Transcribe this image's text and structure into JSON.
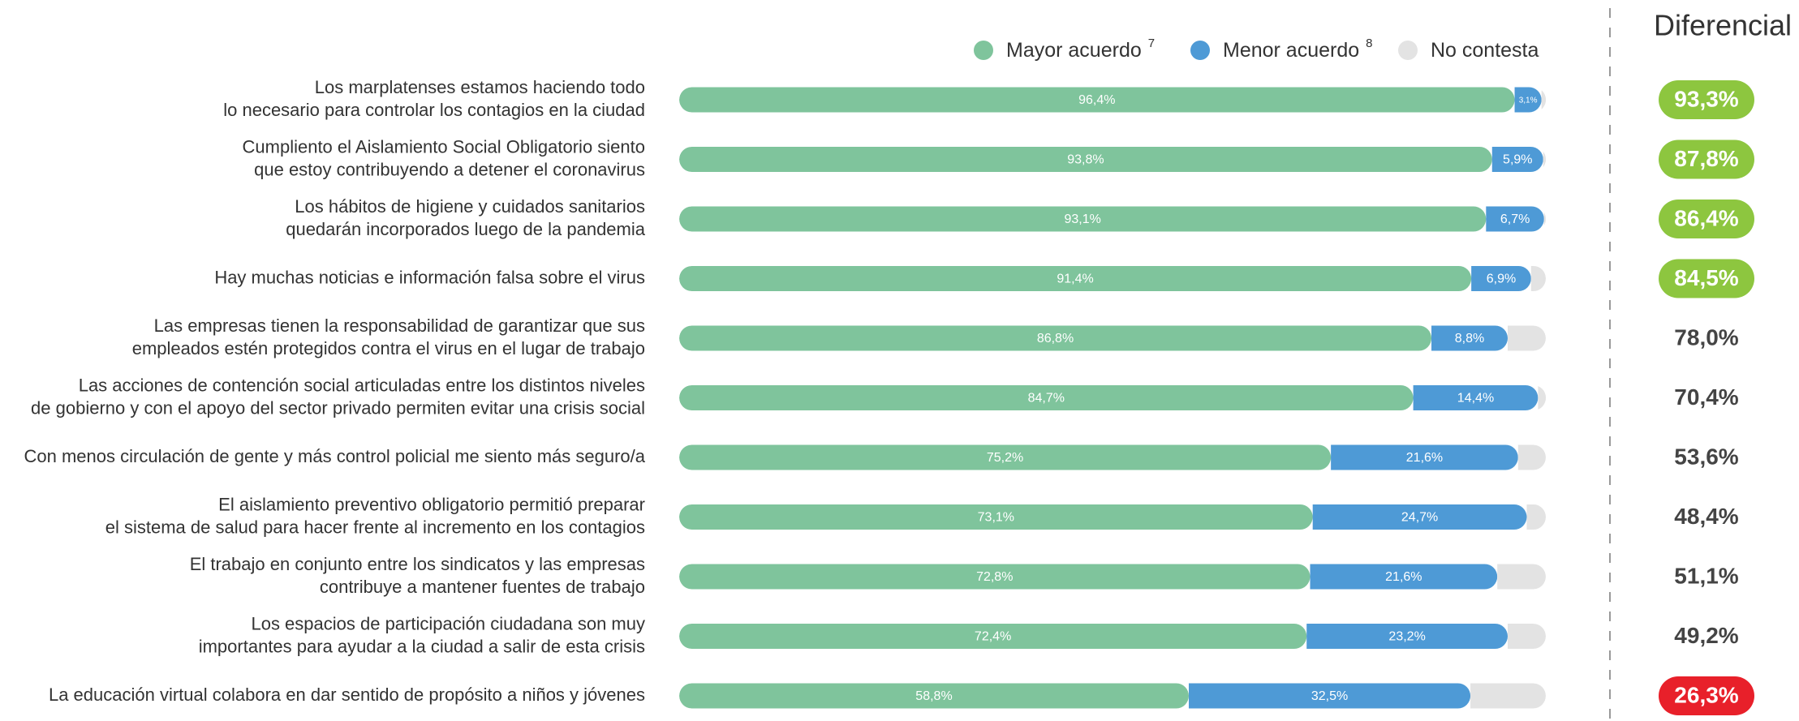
{
  "chart_data": {
    "type": "stacked_bar_horizontal",
    "categories": [
      [
        "Los marplatenses estamos haciendo todo",
        "lo necesario para controlar los contagios en la ciudad"
      ],
      [
        "Cumpliento el Aislamiento Social Obligatorio siento",
        "que estoy contribuyendo a detener el coronavirus"
      ],
      [
        "Los hábitos de higiene y cuidados sanitarios",
        "quedarán incorporados luego de la pandemia"
      ],
      [
        "Hay muchas noticias e información falsa sobre el virus"
      ],
      [
        "Las empresas tienen la responsabilidad de garantizar que sus",
        "empleados estén protegidos contra el virus en el lugar de trabajo"
      ],
      [
        "Las acciones de contención social articuladas entre los distintos niveles",
        "de gobierno y con el apoyo del sector privado permiten evitar una crisis social"
      ],
      [
        "Con menos circulación de gente y más control policial me siento más seguro/a"
      ],
      [
        "El aislamiento preventivo obligatorio permitió preparar",
        "el sistema de salud para hacer frente al incremento en los contagios"
      ],
      [
        "El trabajo en conjunto entre los sindicatos y las empresas",
        "contribuye a mantener fuentes de trabajo"
      ],
      [
        "Los espacios de participación ciudadana son muy",
        "importantes para ayudar a la ciudad a salir de esta crisis"
      ],
      [
        "La educación virtual colabora en dar sentido de propósito a niños y jóvenes"
      ]
    ],
    "series": [
      {
        "name": "Mayor acuerdo",
        "note": "7",
        "color": "#7fc49c",
        "values": [
          96.4,
          93.8,
          93.1,
          91.4,
          86.8,
          84.7,
          75.2,
          73.1,
          72.8,
          72.4,
          58.8
        ],
        "value_labels": [
          "96,4%",
          "93,8%",
          "93,1%",
          "91,4%",
          "86,8%",
          "84,7%",
          "75,2%",
          "73,1%",
          "72,8%",
          "72,4%",
          "58,8%"
        ]
      },
      {
        "name": "Menor acuerdo",
        "note": "8",
        "color": "#4e9ad6",
        "values": [
          3.1,
          5.9,
          6.7,
          6.9,
          8.8,
          14.4,
          21.6,
          24.7,
          21.6,
          23.2,
          32.5
        ],
        "value_labels": [
          "3,1%",
          "5,9%",
          "6,7%",
          "6,9%",
          "8,8%",
          "14,4%",
          "21,6%",
          "24,7%",
          "21,6%",
          "23,2%",
          "32,5%"
        ]
      },
      {
        "name": "No contesta",
        "color": "#e3e3e3",
        "values": [
          0.5,
          0.3,
          0.2,
          1.7,
          4.4,
          0.9,
          3.2,
          2.2,
          5.6,
          4.4,
          8.7
        ]
      }
    ],
    "xlim": [
      0,
      100
    ],
    "differential_title": "Diferencial",
    "differential": {
      "values": [
        93.3,
        87.8,
        86.4,
        84.5,
        78.0,
        70.4,
        53.6,
        48.4,
        51.1,
        49.2,
        26.3
      ],
      "value_labels": [
        "93,3%",
        "87,8%",
        "86,4%",
        "84,5%",
        "78,0%",
        "70,4%",
        "53,6%",
        "48,4%",
        "51,1%",
        "49,2%",
        "26,3%"
      ],
      "colors": [
        "#8dc63f",
        "#8dc63f",
        "#8dc63f",
        "#8dc63f",
        null,
        null,
        null,
        null,
        null,
        null,
        "#e8202a"
      ]
    }
  }
}
